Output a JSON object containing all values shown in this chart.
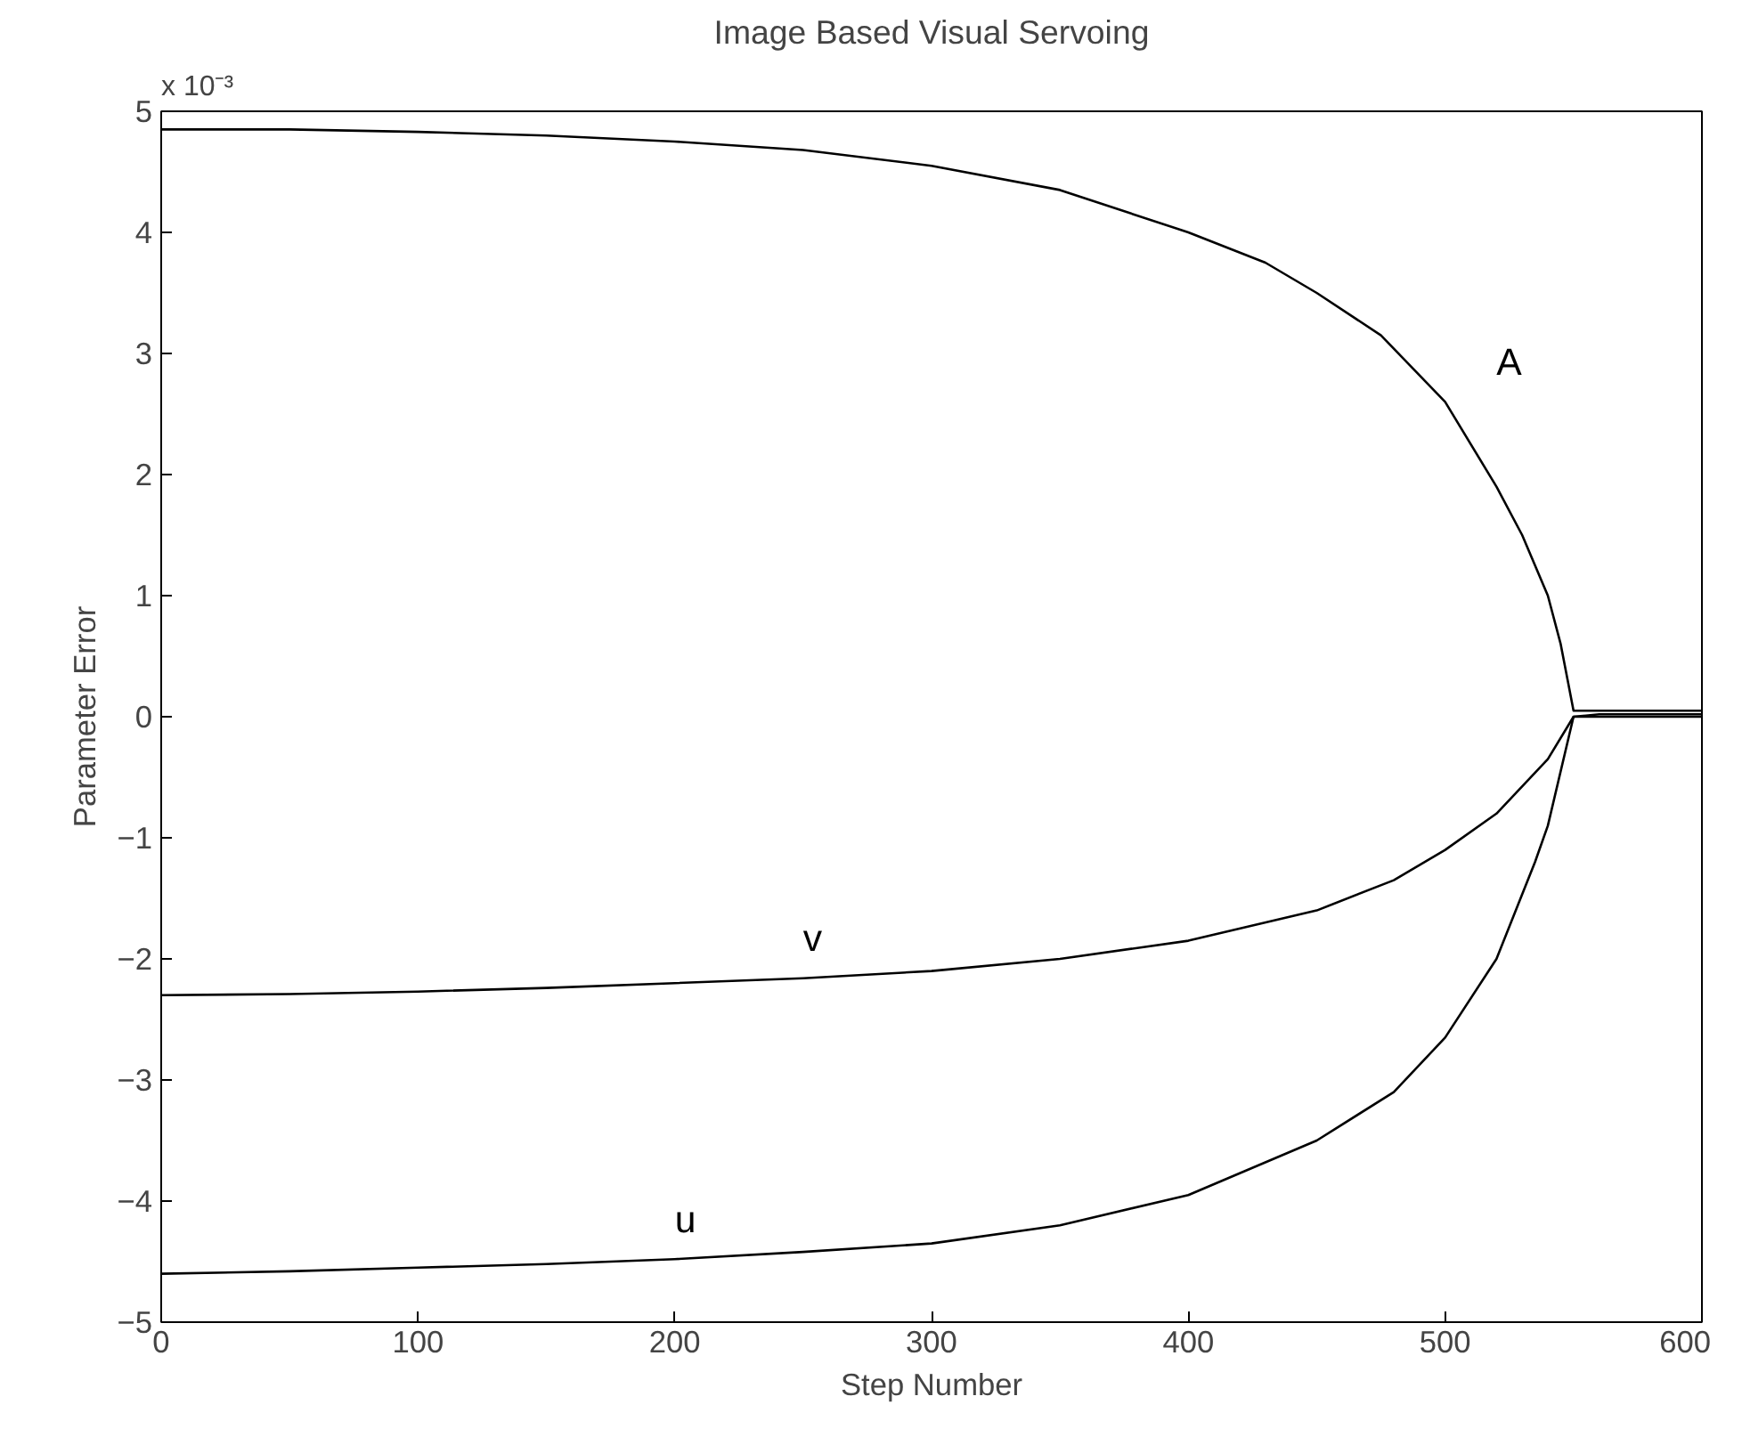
{
  "chart_data": {
    "type": "line",
    "title": "Image Based Visual Servoing",
    "xlabel": "Step Number",
    "ylabel": "Parameter Error",
    "annotations": [
      "x 10⁻³"
    ],
    "xlim": [
      0,
      600
    ],
    "ylim": [
      -5,
      5
    ],
    "xticks": [
      0,
      100,
      200,
      300,
      400,
      500,
      600
    ],
    "yticks": [
      -5,
      -4,
      -3,
      -2,
      -1,
      0,
      1,
      2,
      3,
      4,
      5
    ],
    "grid": false,
    "marker": "none",
    "line_style": "solid",
    "series": [
      {
        "name": "A",
        "color": "#000000",
        "x": [
          0,
          50,
          100,
          150,
          200,
          250,
          300,
          350,
          400,
          430,
          450,
          475,
          500,
          520,
          530,
          540,
          545,
          550,
          560,
          580,
          600
        ],
        "values": [
          4.85,
          4.85,
          4.83,
          4.8,
          4.75,
          4.68,
          4.55,
          4.35,
          4.0,
          3.75,
          3.5,
          3.15,
          2.6,
          1.9,
          1.5,
          1.0,
          0.6,
          0.05,
          0.05,
          0.05,
          0.05
        ]
      },
      {
        "name": "v",
        "color": "#000000",
        "x": [
          0,
          50,
          100,
          150,
          200,
          250,
          300,
          350,
          400,
          450,
          480,
          500,
          520,
          540,
          550,
          560,
          580,
          600
        ],
        "values": [
          -2.3,
          -2.29,
          -2.27,
          -2.24,
          -2.2,
          -2.16,
          -2.1,
          -2.0,
          -1.85,
          -1.6,
          -1.35,
          -1.1,
          -0.8,
          -0.35,
          0.0,
          0.02,
          0.02,
          0.02
        ]
      },
      {
        "name": "u",
        "color": "#000000",
        "x": [
          0,
          50,
          100,
          150,
          200,
          250,
          300,
          350,
          400,
          450,
          480,
          500,
          520,
          535,
          540,
          550,
          560,
          580,
          600
        ],
        "values": [
          -4.6,
          -4.58,
          -4.55,
          -4.52,
          -4.48,
          -4.42,
          -4.35,
          -4.2,
          -3.95,
          -3.5,
          -3.1,
          -2.65,
          -2.0,
          -1.2,
          -0.9,
          0.0,
          0.0,
          0.0,
          0.0
        ]
      }
    ]
  }
}
